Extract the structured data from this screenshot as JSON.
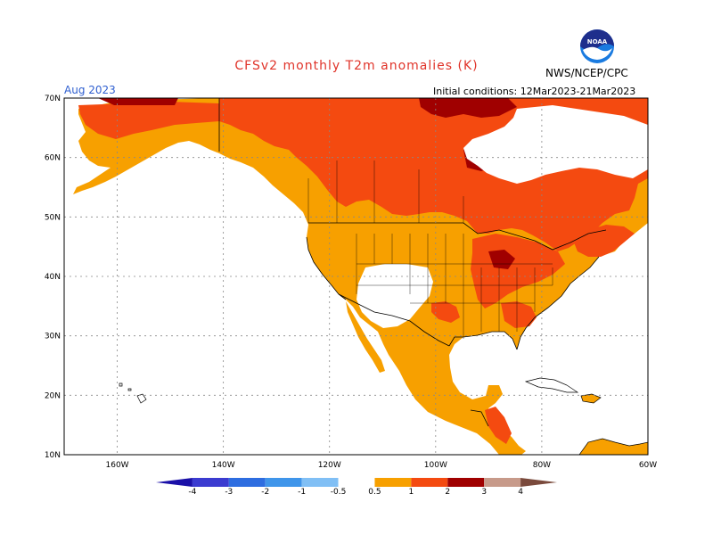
{
  "title": "CFSv2 monthly T2m anomalies (K)",
  "agency": "NWS/NCEP/CPC",
  "logo_text": "NOAA",
  "target_month": "Aug 2023",
  "initial_conditions": "Initial conditions: 12Mar2023-21Mar2023",
  "colors": {
    "title": "#e0342a",
    "month": "#2f5fd0",
    "land": "#f7a000",
    "warm1": "#f44a10",
    "warm2": "#a00000",
    "gray_borders": "#000000",
    "ocean": "#ffffff",
    "noaa_blue": "#1a7be0",
    "noaa_navy": "#1e2e8c"
  },
  "map": {
    "lat_labels": [
      "70N",
      "60N",
      "50N",
      "40N",
      "30N",
      "20N",
      "10N"
    ],
    "lon_labels": [
      "160W",
      "140W",
      "120W",
      "100W",
      "80W",
      "60W"
    ],
    "lat_range": [
      10,
      70
    ],
    "lon_range": [
      -170,
      -60
    ]
  },
  "legend": {
    "labels": [
      "-4",
      "-3",
      "-2",
      "-1",
      "-0.5",
      "0.5",
      "1",
      "2",
      "3",
      "4"
    ],
    "colors": [
      "#1a10a8",
      "#3b3bd0",
      "#2d6de0",
      "#3f95ea",
      "#80bff5",
      "#ffffff",
      "#f7a000",
      "#f44a10",
      "#a00000",
      "#c79a8a",
      "#7a4a3c"
    ]
  }
}
